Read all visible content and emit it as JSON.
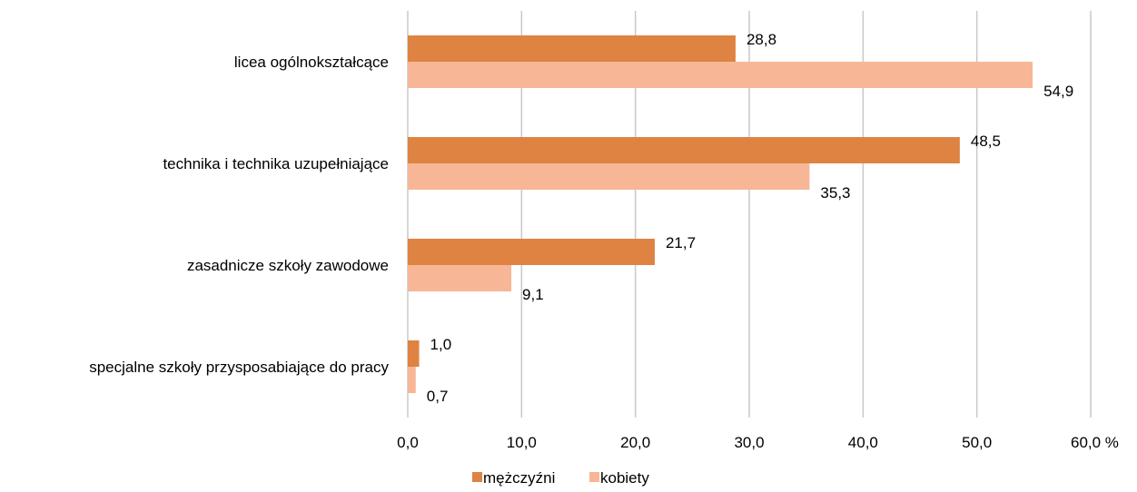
{
  "chart_data": {
    "type": "bar",
    "orientation": "horizontal",
    "categories": [
      "licea ogólnokształcące",
      "technika i technika uzupełniające",
      "zasadnicze szkoły zawodowe",
      "specjalne szkoły przysposabiające do pracy"
    ],
    "series": [
      {
        "name": "mężczyźni",
        "color": "#de8342",
        "values": [
          28.8,
          48.5,
          21.7,
          1.0
        ],
        "labels": [
          "28,8",
          "48,5",
          "21,7",
          "1,0"
        ]
      },
      {
        "name": "kobiety",
        "color": "#f7b695",
        "values": [
          54.9,
          35.3,
          9.1,
          0.7
        ],
        "labels": [
          "54,9",
          "35,3",
          "9,1",
          "0,7"
        ]
      }
    ],
    "xlim": [
      0,
      60
    ],
    "xticks": [
      0,
      10,
      20,
      30,
      40,
      50,
      60
    ],
    "xtick_labels": [
      "0,0",
      "10,0",
      "20,0",
      "30,0",
      "40,0",
      "50,0",
      "60,0 %"
    ],
    "grid": true,
    "legend_position": "bottom"
  }
}
